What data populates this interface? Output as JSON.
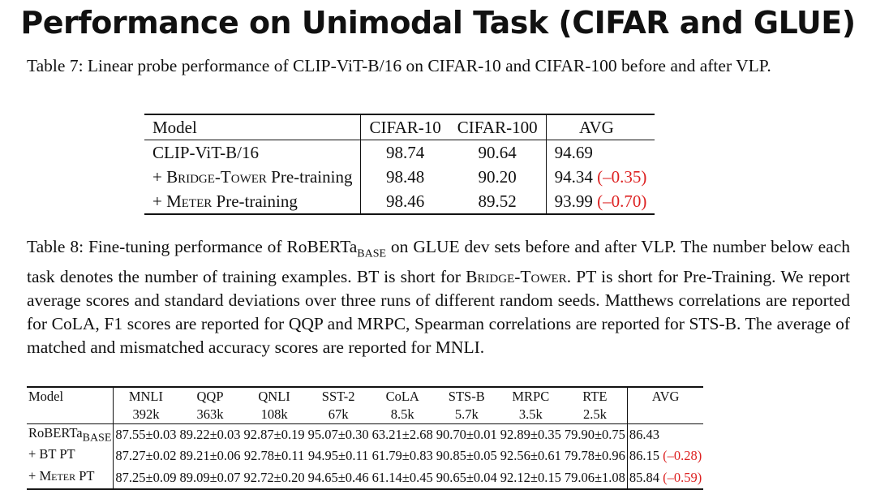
{
  "slide_title": "Performance on Unimodal Task (CIFAR and GLUE)",
  "table7": {
    "caption": "Table 7: Linear probe performance of CLIP-ViT-B/16 on CIFAR-10 and CIFAR-100 before and after VLP.",
    "headers": [
      "Model",
      "CIFAR-10",
      "CIFAR-100",
      "AVG"
    ],
    "rows": [
      {
        "model_pre": "CLIP-ViT-B/16",
        "model_sc": "",
        "model_post": "",
        "cifar10": "98.74",
        "cifar100": "90.64",
        "avg": "94.69",
        "delta": ""
      },
      {
        "model_pre": "+ ",
        "model_sc": "Bridge-Tower",
        "model_post": " Pre-training",
        "cifar10": "98.48",
        "cifar100": "90.20",
        "avg": "94.34",
        "delta": "(–0.35)"
      },
      {
        "model_pre": "+ ",
        "model_sc": "Meter",
        "model_post": " Pre-training",
        "cifar10": "98.46",
        "cifar100": "89.52",
        "avg": "93.99",
        "delta": "(–0.70)"
      }
    ]
  },
  "table8": {
    "caption_parts": {
      "p1": "Table 8: Fine-tuning performance of RoBERTa",
      "sub": "BASE",
      "p2": " on GLUE dev sets before and after VLP. The number below each task denotes the number of training examples. BT is short for ",
      "sc1": "Bridge-Tower",
      "p3": ". PT is short for Pre-Training. We report average scores and standard deviations over three runs of different random seeds. Matthews correlations are reported for CoLA, F1 scores are reported for QQP and MRPC, Spearman correlations are reported for STS-B. The average of matched and mismatched accuracy scores are reported for MNLI."
    },
    "model_header": "Model",
    "tasks": [
      "MNLI",
      "QQP",
      "QNLI",
      "SST-2",
      "CoLA",
      "STS-B",
      "MRPC",
      "RTE"
    ],
    "sizes": [
      "392k",
      "363k",
      "108k",
      "67k",
      "8.5k",
      "5.7k",
      "3.5k",
      "2.5k"
    ],
    "avg_header": "AVG",
    "rows": [
      {
        "model_pre": "RoBERTa",
        "model_sub": "BASE",
        "model_sc": "",
        "model_post": "",
        "values": [
          "87.55±0.03",
          "89.22±0.03",
          "92.87±0.19",
          "95.07±0.30",
          "63.21±2.68",
          "90.70±0.01",
          "92.89±0.35",
          "79.90±0.75"
        ],
        "avg": "86.43",
        "delta": ""
      },
      {
        "model_pre": "+ BT PT",
        "model_sub": "",
        "model_sc": "",
        "model_post": "",
        "values": [
          "87.27±0.02",
          "89.21±0.06",
          "92.78±0.11",
          "94.95±0.11",
          "61.79±0.83",
          "90.85±0.05",
          "92.56±0.61",
          "79.78±0.96"
        ],
        "avg": "86.15",
        "delta": "(–0.28)"
      },
      {
        "model_pre": "+ ",
        "model_sub": "",
        "model_sc": "Meter",
        "model_post": " PT",
        "values": [
          "87.25±0.09",
          "89.09±0.07",
          "92.72±0.20",
          "94.65±0.46",
          "61.14±0.45",
          "90.65±0.04",
          "92.12±0.15",
          "79.06±1.08"
        ],
        "avg": "85.84",
        "delta": "(–0.59)"
      }
    ]
  },
  "colors": {
    "text": "#111111",
    "negative_delta": "#dd2222"
  }
}
